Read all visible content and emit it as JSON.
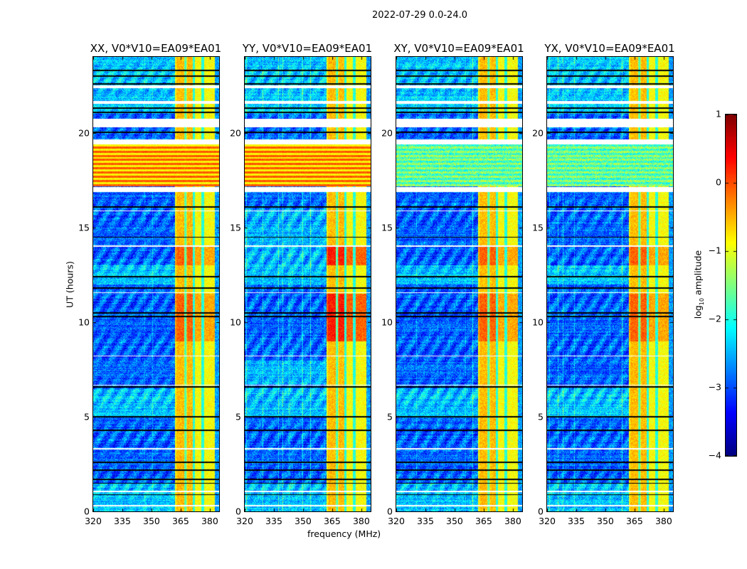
{
  "suptitle": "2022-07-29 0.0-24.0",
  "chart_data": {
    "type": "heatmap",
    "title": "2022-07-29 0.0-24.0",
    "xlabel": "frequency (MHz)",
    "ylabel": "UT (hours)",
    "xlim": [
      320,
      384.8
    ],
    "ylim": [
      0,
      24
    ],
    "xticks": [
      "320",
      "335",
      "350",
      "365",
      "380"
    ],
    "xtick_values": [
      320,
      335,
      350,
      365,
      380
    ],
    "yticks": [
      "0",
      "5",
      "10",
      "15",
      "20"
    ],
    "ytick_values": [
      0,
      5,
      10,
      15,
      20
    ],
    "panels": [
      {
        "title": "XX, V0*V10=EA09*EA01",
        "pol": "XX"
      },
      {
        "title": "YY, V0*V10=EA09*EA01",
        "pol": "YY"
      },
      {
        "title": "XY, V0*V10=EA09*EA01",
        "pol": "XY"
      },
      {
        "title": "YX, V0*V10=EA09*EA01",
        "pol": "YX"
      }
    ],
    "bright_band_MHz": [
      362,
      382.5
    ],
    "flagged_hours": [
      [
        22.35,
        22.5
      ],
      [
        21.55,
        21.7
      ],
      [
        20.3,
        20.75
      ],
      [
        19.4,
        19.65
      ],
      [
        16.9,
        17.15
      ],
      [
        15.85,
        15.9
      ],
      [
        14.0,
        14.05
      ],
      [
        11.55,
        11.6
      ],
      [
        8.2,
        8.25
      ],
      [
        6.65,
        6.7
      ],
      [
        3.3,
        3.35
      ],
      [
        1.05,
        1.1
      ],
      [
        0.3,
        0.35
      ]
    ],
    "black_lines_hours": [
      23.3,
      23.0,
      22.6,
      21.3,
      21.1,
      20.05,
      16.1,
      14.5,
      12.4,
      11.8,
      10.5,
      10.3,
      6.6,
      5.0,
      4.3,
      2.6,
      2.2,
      1.7,
      1.5,
      0.9
    ],
    "colorbar": {
      "label": "log10 amplitude",
      "label_base": "log",
      "label_sub": "10",
      "label_rest": " amplitude",
      "range": [
        -4,
        1
      ],
      "ticks": [
        "1",
        "0",
        "−1",
        "−2",
        "−3",
        "−4"
      ],
      "tick_values": [
        1,
        0,
        -1,
        -2,
        -3,
        -4
      ],
      "colormap": "jet"
    }
  }
}
